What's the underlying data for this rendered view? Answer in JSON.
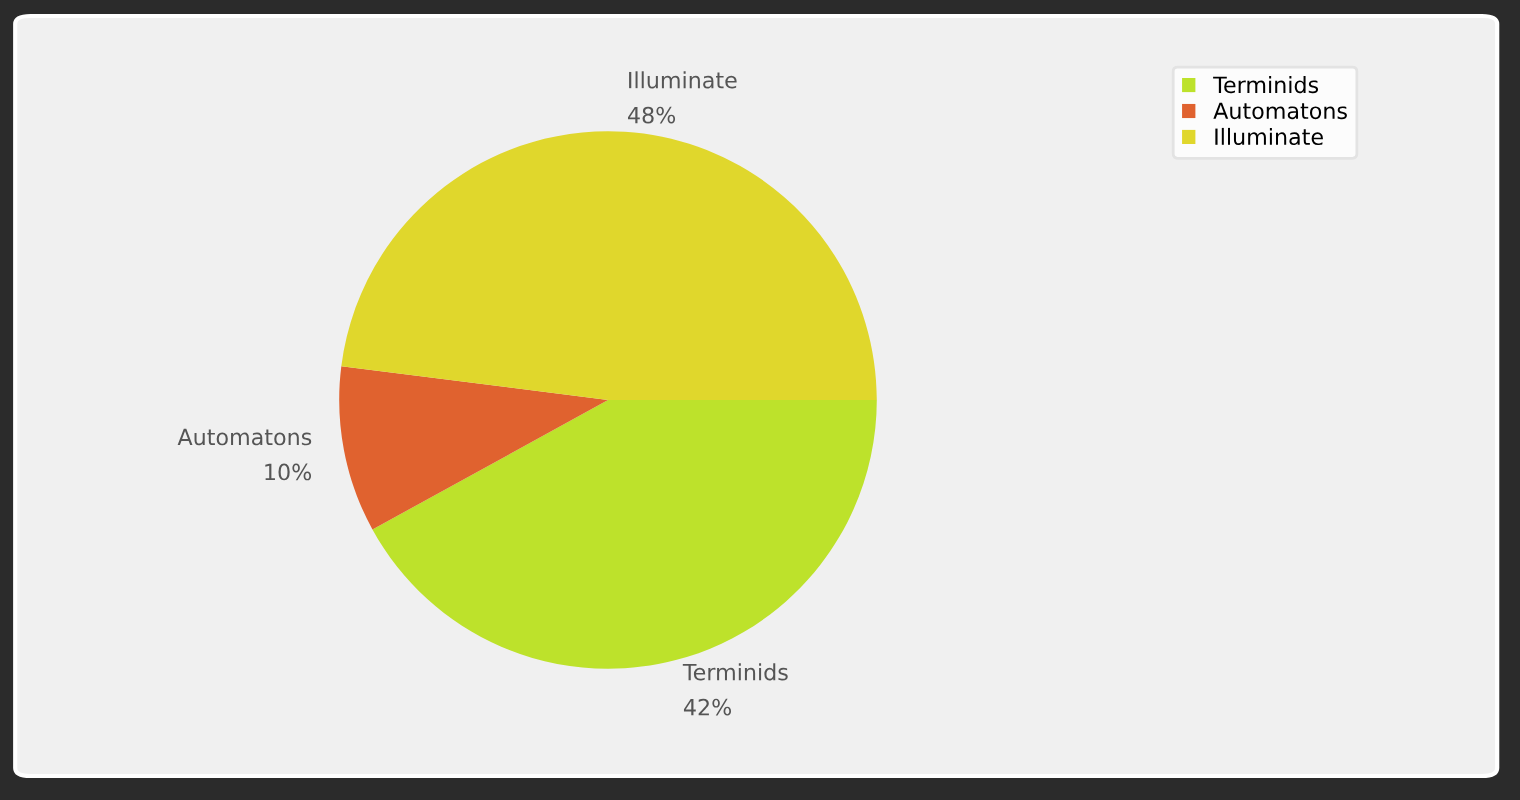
{
  "chart_data": {
    "type": "pie",
    "categories": [
      "Terminids",
      "Automatons",
      "Illuminate"
    ],
    "values": [
      42,
      10,
      48
    ],
    "value_labels": [
      "42%",
      "10%",
      "48%"
    ],
    "colors": [
      "#bde22b",
      "#e0622f",
      "#e0d72c"
    ],
    "legend": "top right"
  }
}
